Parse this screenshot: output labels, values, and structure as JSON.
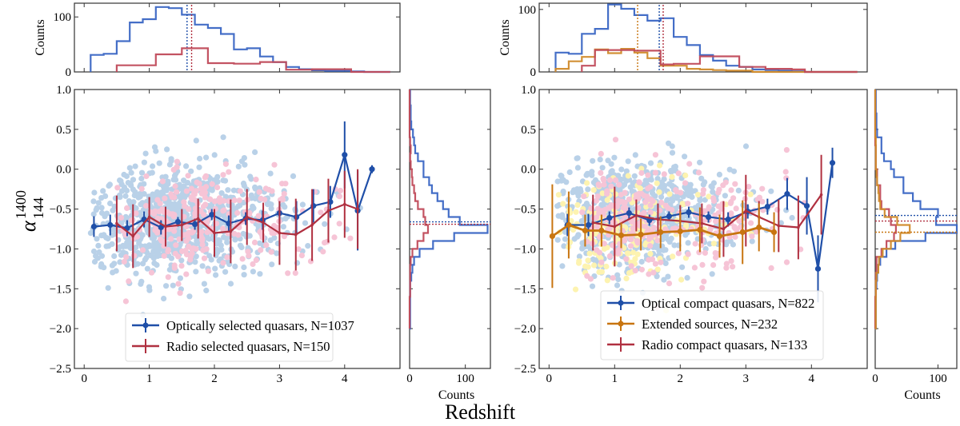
{
  "figure": {
    "xlabel": "Redshift",
    "ylabel_main": "α",
    "ylabel_sup": "1400",
    "ylabel_sub": "144",
    "counts_label": "Counts"
  },
  "colors": {
    "optical": "#1f4fa8",
    "optical_hist": "#3a66c4",
    "radio": "#b03040",
    "radio_hist": "#c04a5a",
    "extended": "#c87510",
    "extended_hist": "#d08a2a",
    "scatter_optical": "#b9d1e8",
    "scatter_radio": "#f6c4d6",
    "scatter_extended": "#fdf3b0"
  },
  "chart_data": [
    {
      "id": "left",
      "type": "scatter",
      "xlim": [
        -0.15,
        4.85
      ],
      "ylim": [
        -2.5,
        1.0
      ],
      "xticks": [
        0,
        1,
        2,
        3,
        4
      ],
      "yticks": [
        -2.5,
        -2.0,
        -1.5,
        -1.0,
        -0.5,
        0.0,
        0.5,
        1.0
      ],
      "ytick_labels": [
        "−2.5",
        "−2.0",
        "−1.5",
        "−1.0",
        "−0.5",
        "0.0",
        "0.5",
        "1.0"
      ],
      "legend_position": "lower-center",
      "series": [
        {
          "key": "optical",
          "name": "Optically selected quasars, N=1037",
          "x": [
            0.15,
            0.4,
            0.66,
            0.92,
            1.18,
            1.44,
            1.7,
            1.96,
            2.22,
            2.48,
            2.74,
            3.0,
            3.26,
            3.52,
            3.78,
            4.04,
            4.3,
            4.56
          ],
          "y": [
            -0.72,
            -0.7,
            -0.74,
            -0.63,
            -0.73,
            -0.66,
            -0.69,
            -0.57,
            -0.68,
            -0.62,
            -0.64,
            -0.55,
            -0.6,
            -0.46,
            -0.41,
            0.18,
            -0.52,
            0.0
          ],
          "yerr": [
            0.13,
            0.13,
            0.1,
            0.1,
            0.09,
            0.06,
            0.07,
            0.07,
            0.1,
            0.08,
            0.12,
            0.14,
            0.2,
            0.21,
            0.2,
            0.42,
            0.5,
            0.05
          ],
          "plot_x": [
            0.15,
            0.4,
            0.66,
            0.92,
            1.18,
            1.44,
            1.7,
            1.96,
            2.22,
            2.48,
            2.74,
            3.0,
            3.26,
            3.52,
            3.78,
            4.0,
            4.2,
            4.42
          ],
          "plot_y": [
            -0.72,
            -0.7,
            -0.74,
            -0.63,
            -0.73,
            -0.66,
            -0.69,
            -0.57,
            -0.68,
            -0.62,
            -0.64,
            -0.55,
            -0.6,
            -0.46,
            -0.41,
            0.18,
            -0.52,
            0.0
          ]
        },
        {
          "key": "radio",
          "name": "Radio selected quasars, N=150",
          "x": [
            0.5,
            0.75,
            1.0,
            1.25,
            1.5,
            1.75,
            2.0,
            2.25,
            2.5,
            2.75,
            3.0,
            3.25,
            3.5,
            3.75,
            4.0,
            4.2
          ],
          "y": [
            -0.68,
            -0.84,
            -0.6,
            -0.72,
            -0.7,
            -0.62,
            -0.8,
            -0.78,
            -0.6,
            -0.67,
            -0.8,
            -0.82,
            -0.7,
            -0.52,
            -0.44,
            -0.5
          ],
          "yerr": [
            0.35,
            0.4,
            0.25,
            0.25,
            0.2,
            0.25,
            0.3,
            0.4,
            0.35,
            0.25,
            0.4,
            0.45,
            0.45,
            0.4,
            0.42,
            0.5
          ]
        }
      ],
      "top_hist": {
        "ylim": [
          0,
          125
        ],
        "yticks": [
          0,
          100
        ],
        "ylabel": "Counts",
        "bins": [
          0.1,
          0.3,
          0.5,
          0.7,
          0.9,
          1.1,
          1.3,
          1.5,
          1.7,
          1.9,
          2.1,
          2.3,
          2.5,
          2.7,
          2.9,
          3.1,
          3.3,
          3.5,
          3.7,
          3.9,
          4.1,
          4.3,
          4.5,
          4.7
        ],
        "series": [
          {
            "key": "optical",
            "counts": [
              31,
              33,
              56,
              90,
              96,
              118,
              116,
              104,
              86,
              80,
              69,
              41,
              43,
              28,
              18,
              9,
              5,
              3,
              2,
              2,
              1,
              0,
              0
            ],
            "median": 1.58
          },
          {
            "key": "radio",
            "counts": [
              0,
              0,
              12,
              12,
              12,
              32,
              32,
              43,
              43,
              16,
              16,
              15,
              15,
              18,
              18,
              4,
              4,
              5,
              5,
              5,
              0,
              0,
              0
            ],
            "median": 1.65
          }
        ]
      },
      "side_hist": {
        "xlim": [
          0,
          145
        ],
        "xticks": [
          0,
          100
        ],
        "xlabel": "Counts",
        "bins": [
          -2.0,
          -1.9,
          -1.8,
          -1.7,
          -1.6,
          -1.5,
          -1.4,
          -1.3,
          -1.2,
          -1.1,
          -1.0,
          -0.9,
          -0.8,
          -0.7,
          -0.6,
          -0.5,
          -0.4,
          -0.3,
          -0.2,
          -0.1,
          0.0,
          0.1,
          0.2,
          0.3,
          0.4,
          0.5,
          0.6,
          0.7,
          0.8,
          0.9,
          1.0
        ],
        "series": [
          {
            "key": "optical",
            "counts": [
              1,
              1,
              1,
              1,
              1,
              1,
              3,
              5,
              8,
              18,
              42,
              80,
              140,
              90,
              70,
              60,
              50,
              40,
              35,
              25,
              25,
              15,
              10,
              8,
              6,
              3,
              2,
              2,
              1,
              1
            ],
            "median": -0.66
          },
          {
            "key": "radio",
            "counts": [
              0,
              0,
              0,
              0,
              1,
              1,
              1,
              1,
              2,
              5,
              14,
              25,
              33,
              28,
              25,
              15,
              10,
              8,
              5,
              4,
              2,
              1,
              2,
              1,
              0,
              0,
              0,
              0,
              0,
              0
            ],
            "median": -0.69
          }
        ]
      }
    },
    {
      "id": "right",
      "type": "scatter",
      "xlim": [
        -0.15,
        4.85
      ],
      "ylim": [
        -2.5,
        1.0
      ],
      "xticks": [
        0,
        1,
        2,
        3,
        4
      ],
      "yticks": [
        -2.5,
        -2.0,
        -1.5,
        -1.0,
        -0.5,
        0.0,
        0.5,
        1.0
      ],
      "ytick_labels": [
        "−2.5",
        "−2.0",
        "−1.5",
        "−1.0",
        "−0.5",
        "0.0",
        "0.5",
        "1.0"
      ],
      "legend_position": "lower-right",
      "series": [
        {
          "key": "optical",
          "name": "Optical compact quasars, N=822",
          "x": [
            0.28,
            0.6,
            0.92,
            1.22,
            1.53,
            1.83,
            2.13,
            2.43,
            2.73,
            3.03,
            3.33,
            3.63,
            3.93,
            4.1,
            4.32
          ],
          "y": [
            -0.7,
            -0.7,
            -0.61,
            -0.55,
            -0.64,
            -0.59,
            -0.54,
            -0.6,
            -0.63,
            -0.53,
            -0.47,
            -0.31,
            -0.46,
            -1.25,
            0.08
          ],
          "yerr": [
            0.14,
            0.14,
            0.08,
            0.07,
            0.07,
            0.06,
            0.07,
            0.07,
            0.09,
            0.09,
            0.1,
            0.2,
            0.36,
            0.42,
            0.19
          ]
        },
        {
          "key": "radio",
          "name": "Radio compact quasars, N=133",
          "x": [
            0.67,
            1.0,
            1.33,
            1.66,
            2.0,
            2.33,
            2.66,
            3.0,
            3.2,
            3.5,
            3.8,
            4.15
          ],
          "y": [
            -0.67,
            -0.72,
            -0.58,
            -0.63,
            -0.65,
            -0.68,
            -0.75,
            -0.52,
            -0.6,
            -0.71,
            -0.73,
            -0.32
          ],
          "yerr": [
            0.35,
            0.5,
            0.2,
            0.2,
            0.2,
            0.25,
            0.35,
            0.45,
            0.2,
            0.33,
            0.4,
            0.5
          ]
        },
        {
          "key": "extended",
          "name": "Extended sources, N=232",
          "x": [
            0.05,
            0.3,
            0.55,
            0.8,
            1.1,
            1.4,
            1.7,
            2.0,
            2.3,
            2.6,
            2.95,
            3.2,
            3.43
          ],
          "y": [
            -0.84,
            -0.7,
            -0.77,
            -0.77,
            -0.83,
            -0.82,
            -0.79,
            -0.78,
            -0.76,
            -0.84,
            -0.79,
            -0.73,
            -0.79
          ],
          "yerr": [
            0.65,
            0.42,
            0.2,
            0.2,
            0.16,
            0.2,
            0.2,
            0.25,
            0.28,
            0.27,
            0.4,
            0.3,
            0.25
          ]
        }
      ],
      "top_hist": {
        "ylim": [
          0,
          110
        ],
        "yticks": [
          0,
          100
        ],
        "ylabel": "Counts",
        "bins": [
          0.1,
          0.3,
          0.5,
          0.7,
          0.9,
          1.1,
          1.3,
          1.5,
          1.7,
          1.9,
          2.1,
          2.3,
          2.5,
          2.7,
          2.9,
          3.1,
          3.3,
          3.5,
          3.7,
          3.9,
          4.1,
          4.3,
          4.5,
          4.7
        ],
        "series": [
          {
            "key": "optical",
            "counts": [
              31,
              29,
              61,
              69,
              108,
              101,
              91,
              82,
              86,
              56,
              43,
              27,
              18,
              10,
              8,
              4,
              3,
              2,
              1,
              0,
              0,
              0,
              0
            ],
            "median": 1.68
          },
          {
            "key": "extended",
            "counts": [
              5,
              17,
              24,
              36,
              30,
              37,
              31,
              22,
              10,
              10,
              5,
              4,
              3,
              2,
              2,
              0,
              0,
              0,
              0,
              0,
              0,
              0,
              0
            ],
            "median": 1.35
          },
          {
            "key": "radio",
            "counts": [
              0,
              0,
              10,
              35,
              35,
              35,
              34,
              34,
              12,
              13,
              13,
              25,
              25,
              25,
              8,
              8,
              5,
              5,
              4,
              0,
              0,
              0,
              0
            ],
            "median": 1.74
          }
        ]
      },
      "side_hist": {
        "xlim": [
          0,
          130
        ],
        "xticks": [
          0,
          100
        ],
        "xlabel": "Counts",
        "bins": [
          -2.0,
          -1.9,
          -1.8,
          -1.7,
          -1.6,
          -1.5,
          -1.4,
          -1.3,
          -1.2,
          -1.1,
          -1.0,
          -0.9,
          -0.8,
          -0.7,
          -0.6,
          -0.5,
          -0.4,
          -0.3,
          -0.2,
          -0.1,
          0.0,
          0.1,
          0.2,
          0.3,
          0.4,
          0.5,
          0.6,
          0.7,
          0.8,
          0.9,
          1.0
        ],
        "series": [
          {
            "key": "optical",
            "counts": [
              1,
              1,
              1,
              1,
              1,
              2,
              3,
              5,
              8,
              18,
              32,
              80,
              130,
              97,
              100,
              72,
              60,
              45,
              45,
              30,
              25,
              14,
              10,
              10,
              3,
              2,
              2,
              1,
              1,
              1
            ],
            "median": -0.58
          },
          {
            "key": "radio",
            "counts": [
              0,
              0,
              0,
              0,
              1,
              1,
              1,
              2,
              2,
              10,
              18,
              30,
              33,
              25,
              22,
              10,
              8,
              8,
              3,
              3,
              1,
              1,
              1,
              0,
              0,
              0,
              0,
              0,
              0,
              0
            ],
            "median": -0.65
          },
          {
            "key": "extended",
            "counts": [
              1,
              1,
              1,
              1,
              1,
              1,
              2,
              5,
              6,
              12,
              25,
              40,
              55,
              35,
              15,
              8,
              6,
              5,
              3,
              2,
              1,
              1,
              1,
              1,
              0,
              0,
              0,
              0,
              0,
              0
            ],
            "median": -0.79
          }
        ]
      }
    }
  ]
}
